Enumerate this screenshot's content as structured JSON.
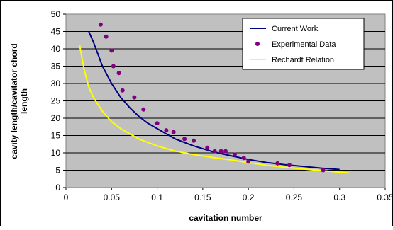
{
  "chart_data": {
    "type": "scatter",
    "xlabel": "cavitation number",
    "ylabel": [
      "cavity length/cavitator chord",
      "length"
    ],
    "xlim": [
      0,
      0.35
    ],
    "ylim": [
      0,
      50
    ],
    "x_ticks": [
      "0",
      "0.05",
      "0.1",
      "0.15",
      "0.2",
      "0.25",
      "0.3",
      "0.35"
    ],
    "y_ticks": [
      "0",
      "5",
      "10",
      "15",
      "20",
      "25",
      "30",
      "35",
      "40",
      "45",
      "50"
    ],
    "grid": "horizontal",
    "legend_placement": "top-right",
    "plot_background": "#C0C0C0",
    "series": [
      {
        "name": "Current Work",
        "kind": "line",
        "color": "#000080",
        "x": [
          0.025,
          0.03,
          0.035,
          0.04,
          0.045,
          0.05,
          0.055,
          0.06,
          0.065,
          0.07,
          0.08,
          0.09,
          0.1,
          0.11,
          0.12,
          0.13,
          0.14,
          0.15,
          0.16,
          0.17,
          0.18,
          0.2,
          0.22,
          0.24,
          0.26,
          0.28,
          0.3
        ],
        "y": [
          45,
          42,
          38.5,
          35,
          32.5,
          30,
          28,
          26,
          24.5,
          23,
          20.5,
          18.5,
          17,
          15.5,
          14,
          13,
          12,
          11.2,
          10.4,
          9.8,
          9.2,
          8.1,
          7.2,
          6.6,
          6.1,
          5.6,
          5.2
        ]
      },
      {
        "name": "Experimental Data",
        "kind": "points",
        "color": "#800080",
        "x": [
          0.038,
          0.044,
          0.05,
          0.052,
          0.058,
          0.062,
          0.075,
          0.085,
          0.1,
          0.11,
          0.118,
          0.13,
          0.14,
          0.155,
          0.163,
          0.17,
          0.175,
          0.185,
          0.195,
          0.2,
          0.232,
          0.245,
          0.282
        ],
        "y": [
          47,
          43.5,
          39.5,
          35,
          33,
          28,
          26,
          22.5,
          18.5,
          16.5,
          16,
          14,
          13.5,
          11.5,
          10.5,
          10.5,
          10.5,
          9.5,
          8.5,
          7.5,
          7,
          6.5,
          5
        ]
      },
      {
        "name": "Rechardt Relation",
        "kind": "line",
        "color": "#FFFF00",
        "x": [
          0.015,
          0.02,
          0.025,
          0.03,
          0.035,
          0.04,
          0.05,
          0.06,
          0.07,
          0.08,
          0.1,
          0.12,
          0.14,
          0.16,
          0.18,
          0.2,
          0.22,
          0.25,
          0.28,
          0.31
        ],
        "y": [
          41,
          34,
          29,
          26,
          24,
          22,
          19,
          17,
          15.5,
          14,
          12,
          10.5,
          9.5,
          8.7,
          8,
          7.2,
          6.4,
          5.6,
          4.9,
          4.2
        ]
      }
    ]
  }
}
